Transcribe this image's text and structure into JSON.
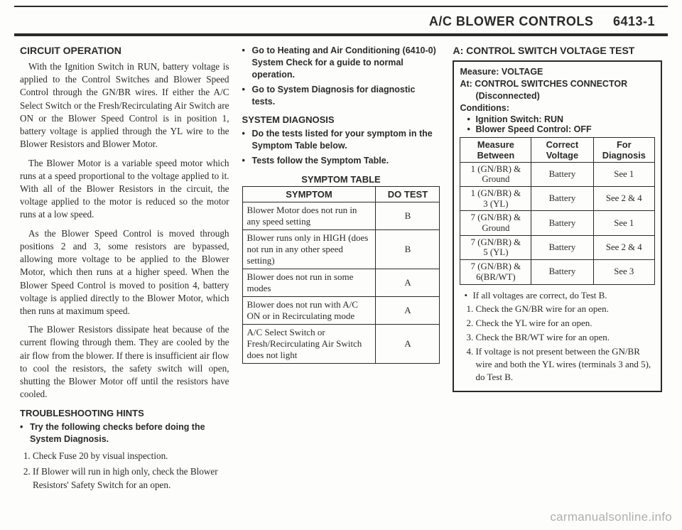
{
  "header": {
    "title": "A/C BLOWER CONTROLS",
    "page": "6413-1"
  },
  "col1": {
    "h1": "CIRCUIT OPERATION",
    "p1": "With the Ignition Switch in RUN, battery voltage is applied to the Control Switches and Blower Speed Control through the GN/BR wires. If either the A/C Select Switch or the Fresh/Recirculating Air Switch are ON or the Blower Speed Control is in position 1, battery voltage is applied through the YL wire to the Blower Resistors and Blower Motor.",
    "p2": "The Blower Motor is a variable speed motor which runs at a speed proportional to the voltage applied to it. With all of the Blower Resistors in the circuit, the voltage applied to the motor is reduced so the motor runs at a low speed.",
    "p3": "As the Blower Speed Control is moved through positions 2 and 3, some resistors are bypassed, allowing more voltage to be applied to the Blower Motor, which then runs at a higher speed. When the Blower Speed Control is moved to position 4, battery voltage is applied directly to the Blower Motor, which then runs at maximum speed.",
    "p4": "The Blower Resistors dissipate heat because of the current flowing through them. They are cooled by the air flow from the blower. If there is insufficient air flow to cool the resistors, the safety switch will open, shutting the Blower Motor off until the resistors have cooled.",
    "h2": "TROUBLESHOOTING HINTS",
    "b1": "Try the following checks before doing the System Diagnosis.",
    "n1": "Check Fuse 20 by visual inspection.",
    "n2": "If Blower will run in high only, check the Blower Resistors' Safety Switch for an open."
  },
  "col2": {
    "b1": "Go to Heating and Air Conditioning (6410-0) System Check for a guide to normal operation.",
    "b2": "Go to System Diagnosis for diagnostic tests.",
    "h1": "SYSTEM DIAGNOSIS",
    "b3": "Do the tests listed for your symptom in the Symptom Table below.",
    "b4": "Tests follow the Symptom Table.",
    "tableTitle": "SYMPTOM TABLE",
    "th1": "SYMPTOM",
    "th2": "DO TEST",
    "rows": [
      {
        "s": "Blower Motor does not run in any speed setting",
        "t": "B"
      },
      {
        "s": "Blower runs only in HIGH (does not run in any other speed setting)",
        "t": "B"
      },
      {
        "s": "Blower does not run in some modes",
        "t": "A"
      },
      {
        "s": "Blower does not run with A/C ON or in Recirculating mode",
        "t": "A"
      },
      {
        "s": "A/C Select Switch or Fresh/Recirculating Air Switch does not light",
        "t": "A"
      }
    ]
  },
  "col3": {
    "h1": "A: CONTROL SWITCH VOLTAGE TEST",
    "measure": "Measure: VOLTAGE",
    "at1": "At: CONTROL SWITCHES CONNECTOR",
    "at2": "(Disconnected)",
    "cond": "Conditions:",
    "c1": "Ignition Switch: RUN",
    "c2": "Blower Speed Control: OFF",
    "th1": "Measure Between",
    "th2": "Correct Voltage",
    "th3": "For Diagnosis",
    "rows": [
      {
        "m": "1 (GN/BR) &<br>Ground",
        "v": "Battery",
        "d": "See 1"
      },
      {
        "m": "1 (GN/BR) &<br>3 (YL)",
        "v": "Battery",
        "d": "See 2 & 4"
      },
      {
        "m": "7 (GN/BR) &<br>Ground",
        "v": "Battery",
        "d": "See 1"
      },
      {
        "m": "7 (GN/BR) &<br>5 (YL)",
        "v": "Battery",
        "d": "See 2 & 4"
      },
      {
        "m": "7 (GN/BR) &<br>6(BR/WT)",
        "v": "Battery",
        "d": "See 3"
      }
    ],
    "after_b": "If all voltages are correct, do Test B.",
    "s1": "Check the GN/BR wire for an open.",
    "s2": "Check the YL wire for an open.",
    "s3": "Check the BR/WT wire for an open.",
    "s4": "If voltage is not present between the GN/BR wire and both the YL wires (terminals 3 and 5), do Test B."
  },
  "watermark": "carmanualsonline.info"
}
